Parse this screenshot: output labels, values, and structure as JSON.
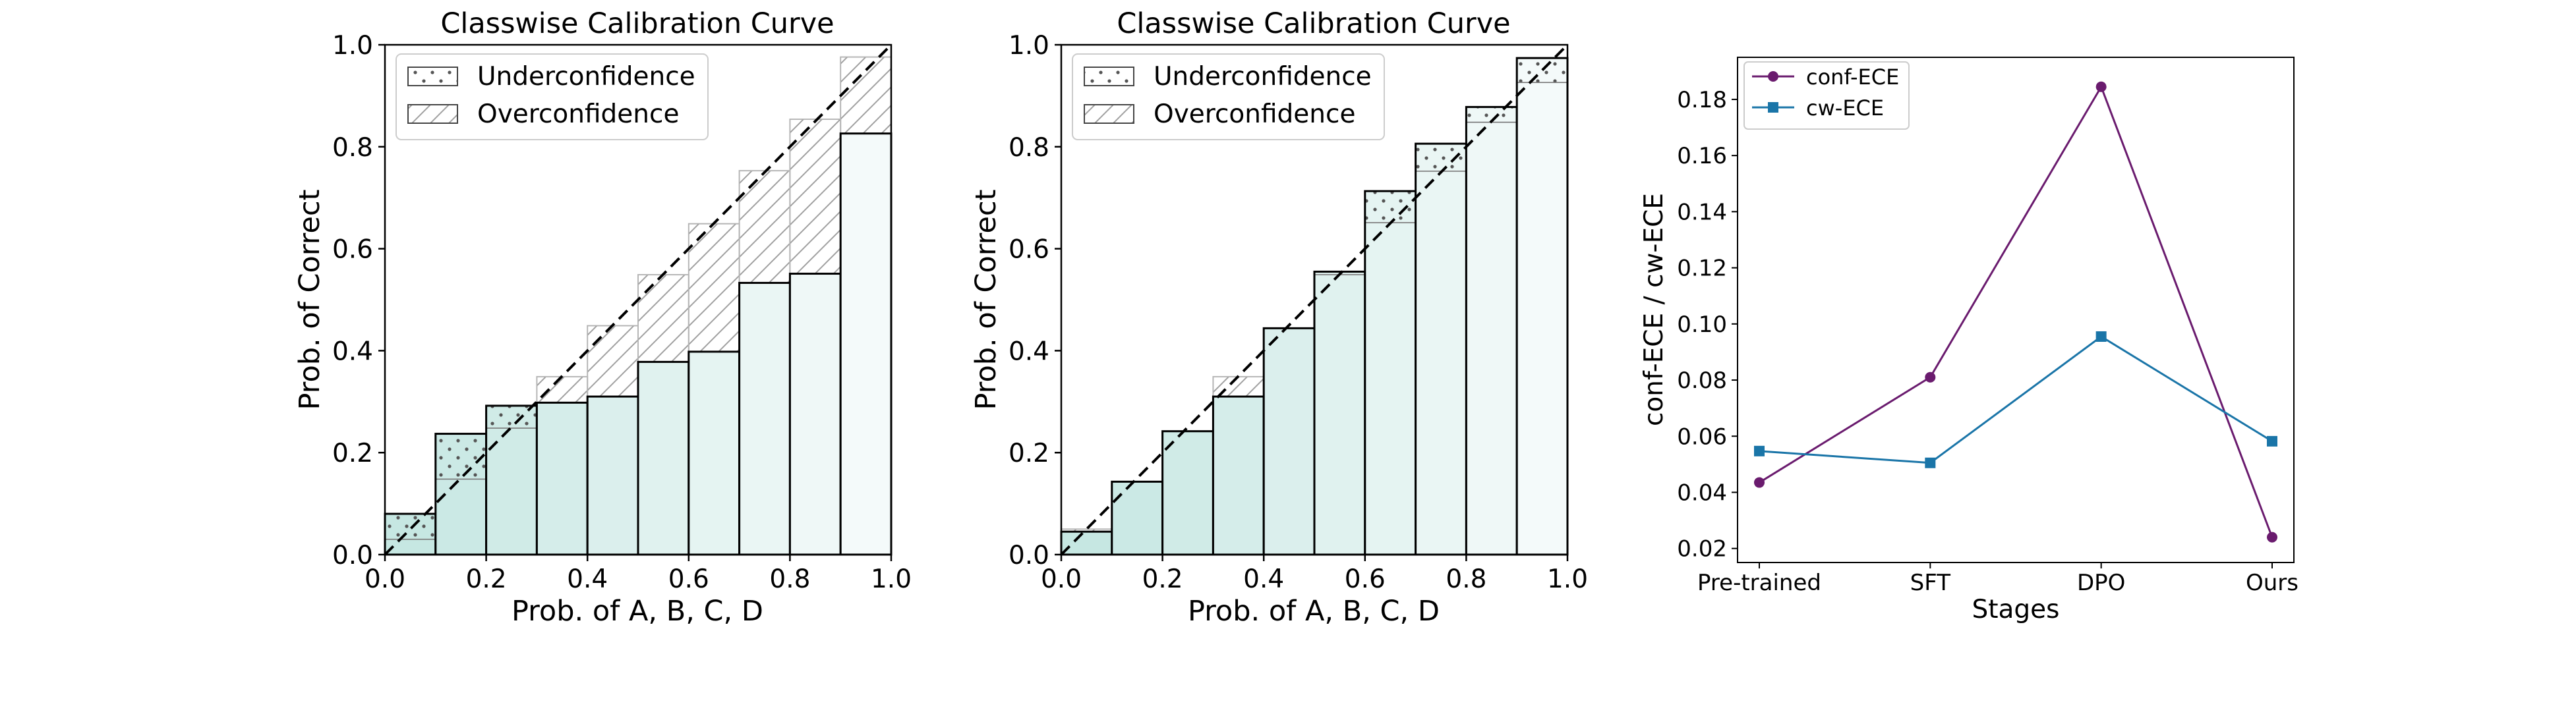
{
  "chart_data": [
    {
      "type": "bar",
      "subtype": "calibration-histogram",
      "title": "Classwise Calibration Curve",
      "xlabel": "Prob. of A, B, C, D",
      "ylabel": "Prob. of Correct",
      "xlim": [
        0.0,
        1.0
      ],
      "ylim": [
        0.0,
        1.0
      ],
      "xticks": [
        "0.0",
        "0.2",
        "0.4",
        "0.6",
        "0.8",
        "1.0"
      ],
      "yticks": [
        "0.0",
        "0.2",
        "0.4",
        "0.6",
        "0.8",
        "1.0"
      ],
      "legend": {
        "position": "top-left",
        "entries": [
          "Underconfidence",
          "Overconfidence"
        ]
      },
      "bin_width": 0.1,
      "bins": [
        0.0,
        0.1,
        0.2,
        0.3,
        0.4,
        0.5,
        0.6,
        0.7,
        0.8,
        0.9
      ],
      "accuracy": [
        0.08,
        0.237,
        0.292,
        0.298,
        0.31,
        0.378,
        0.398,
        0.533,
        0.551,
        0.826
      ],
      "confidence": [
        0.03,
        0.148,
        0.248,
        0.349,
        0.449,
        0.549,
        0.649,
        0.753,
        0.854,
        0.976
      ]
    },
    {
      "type": "bar",
      "subtype": "calibration-histogram",
      "title": "Classwise Calibration Curve",
      "xlabel": "Prob. of A, B, C, D",
      "ylabel": "Prob. of Correct",
      "xlim": [
        0.0,
        1.0
      ],
      "ylim": [
        0.0,
        1.0
      ],
      "xticks": [
        "0.0",
        "0.2",
        "0.4",
        "0.6",
        "0.8",
        "1.0"
      ],
      "yticks": [
        "0.0",
        "0.2",
        "0.4",
        "0.6",
        "0.8",
        "1.0"
      ],
      "legend": {
        "position": "top-left",
        "entries": [
          "Underconfidence",
          "Overconfidence"
        ]
      },
      "bin_width": 0.1,
      "bins": [
        0.0,
        0.1,
        0.2,
        0.3,
        0.4,
        0.5,
        0.6,
        0.7,
        0.8,
        0.9
      ],
      "accuracy": [
        0.045,
        0.143,
        0.242,
        0.31,
        0.444,
        0.555,
        0.713,
        0.806,
        0.878,
        0.974
      ],
      "confidence": [
        0.05,
        0.143,
        0.242,
        0.349,
        0.444,
        0.549,
        0.651,
        0.752,
        0.848,
        0.926
      ]
    },
    {
      "type": "line",
      "title": "",
      "xlabel": "Stages",
      "ylabel": "conf-ECE / cw-ECE",
      "categories": [
        "Pre-trained",
        "SFT",
        "DPO",
        "Ours"
      ],
      "ylim": [
        0.015,
        0.195
      ],
      "yticks": [
        "0.02",
        "0.04",
        "0.06",
        "0.08",
        "0.10",
        "0.12",
        "0.14",
        "0.16",
        "0.18"
      ],
      "legend": {
        "position": "top-left"
      },
      "series": [
        {
          "name": "conf-ECE",
          "marker": "circle",
          "color": "#6a1b6e",
          "values": [
            0.0435,
            0.081,
            0.1845,
            0.024
          ]
        },
        {
          "name": "cw-ECE",
          "marker": "square",
          "color": "#1a75a8",
          "values": [
            0.0547,
            0.0505,
            0.0955,
            0.0582
          ]
        }
      ]
    }
  ]
}
